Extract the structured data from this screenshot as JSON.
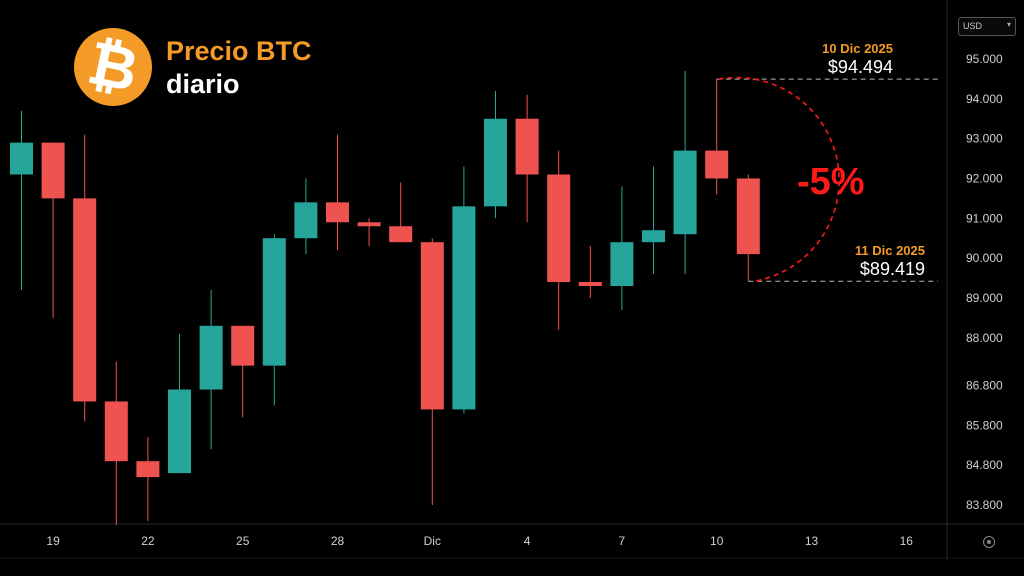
{
  "branding": {
    "logo_icon": "bitcoin-icon",
    "logo_glyph": "₿",
    "logo_color": "#f39a27",
    "title": "Precio BTC",
    "subtitle": "diario"
  },
  "currency_selector": {
    "value": "USD"
  },
  "colors": {
    "up": "#26a69a",
    "down": "#ef5350",
    "accent": "#f39a27",
    "drop": "#ff1a1a"
  },
  "chart_data": {
    "type": "candlestick",
    "title": "",
    "ylim": [
      83300,
      95900
    ],
    "y_ticks": [
      {
        "value": 95000,
        "label": "95.000"
      },
      {
        "value": 94000,
        "label": "94.000"
      },
      {
        "value": 93000,
        "label": "93.000"
      },
      {
        "value": 92000,
        "label": "92.000"
      },
      {
        "value": 91000,
        "label": "91.000"
      },
      {
        "value": 90000,
        "label": "90.000"
      },
      {
        "value": 89000,
        "label": "89.000"
      },
      {
        "value": 88000,
        "label": "88.000"
      },
      {
        "value": 86800,
        "label": "86.800"
      },
      {
        "value": 85800,
        "label": "85.800"
      },
      {
        "value": 84800,
        "label": "84.800"
      },
      {
        "value": 83800,
        "label": "83.800"
      }
    ],
    "x_ticks": [
      {
        "day_index": 1,
        "label": "19"
      },
      {
        "day_index": 4,
        "label": "22"
      },
      {
        "day_index": 7,
        "label": "25"
      },
      {
        "day_index": 10,
        "label": "28"
      },
      {
        "day_index": 13,
        "label": "Dic"
      },
      {
        "day_index": 16,
        "label": "4"
      },
      {
        "day_index": 19,
        "label": "7"
      },
      {
        "day_index": 22,
        "label": "10"
      },
      {
        "day_index": 25,
        "label": "13"
      },
      {
        "day_index": 28,
        "label": "16"
      }
    ],
    "candles": [
      {
        "o": 92100,
        "h": 93700,
        "l": 89200,
        "c": 92900
      },
      {
        "o": 92900,
        "h": 92900,
        "l": 88500,
        "c": 91500
      },
      {
        "o": 91500,
        "h": 93100,
        "l": 85900,
        "c": 86400
      },
      {
        "o": 86400,
        "h": 87400,
        "l": 83300,
        "c": 84900
      },
      {
        "o": 84900,
        "h": 85500,
        "l": 83400,
        "c": 84500
      },
      {
        "o": 84600,
        "h": 88100,
        "l": 84600,
        "c": 86700
      },
      {
        "o": 86700,
        "h": 89200,
        "l": 85200,
        "c": 88300
      },
      {
        "o": 88300,
        "h": 88300,
        "l": 86000,
        "c": 87300
      },
      {
        "o": 87300,
        "h": 90600,
        "l": 86300,
        "c": 90500
      },
      {
        "o": 90500,
        "h": 92000,
        "l": 90100,
        "c": 91400
      },
      {
        "o": 91400,
        "h": 93100,
        "l": 90200,
        "c": 90900
      },
      {
        "o": 90900,
        "h": 91000,
        "l": 90300,
        "c": 90800
      },
      {
        "o": 90800,
        "h": 91900,
        "l": 90400,
        "c": 90400
      },
      {
        "o": 90400,
        "h": 90500,
        "l": 83800,
        "c": 86200
      },
      {
        "o": 86200,
        "h": 92300,
        "l": 86100,
        "c": 91300
      },
      {
        "o": 91300,
        "h": 94200,
        "l": 91000,
        "c": 93500
      },
      {
        "o": 93500,
        "h": 94100,
        "l": 90900,
        "c": 92100
      },
      {
        "o": 92100,
        "h": 92700,
        "l": 88200,
        "c": 89400
      },
      {
        "o": 89400,
        "h": 90300,
        "l": 89000,
        "c": 89300
      },
      {
        "o": 89300,
        "h": 91800,
        "l": 88700,
        "c": 90400
      },
      {
        "o": 90400,
        "h": 92300,
        "l": 89600,
        "c": 90700
      },
      {
        "o": 90600,
        "h": 94700,
        "l": 89600,
        "c": 92700
      },
      {
        "o": 92700,
        "h": 94494,
        "l": 91600,
        "c": 92000
      },
      {
        "o": 92000,
        "h": 92100,
        "l": 89419,
        "c": 90100
      }
    ],
    "annotations": {
      "high": {
        "day_index": 22,
        "value": 94494,
        "date_label": "10 Dic 2025",
        "price_label": "$94.494"
      },
      "low": {
        "day_index": 23,
        "value": 89419,
        "date_label": "11 Dic 2025",
        "price_label": "$89.419"
      },
      "change_label": "-5%"
    }
  }
}
